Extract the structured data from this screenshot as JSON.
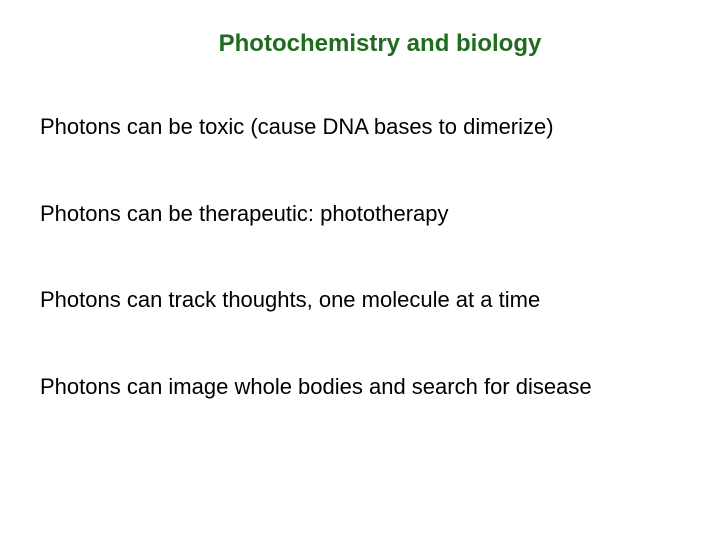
{
  "slide": {
    "title": "Photochemistry and biology",
    "title_color": "#1f6b1f",
    "title_fontsize": 24,
    "background_color": "#ffffff",
    "font_family": "Comic Sans MS",
    "bullets": [
      "Photons can be toxic (cause DNA bases to dimerize)",
      "Photons can be therapeutic: phototherapy",
      "Photons can track thoughts, one molecule at a time",
      "Photons can image whole bodies and search for disease"
    ],
    "bullet_color": "#000000",
    "bullet_fontsize": 22,
    "bullet_spacing": 58
  }
}
